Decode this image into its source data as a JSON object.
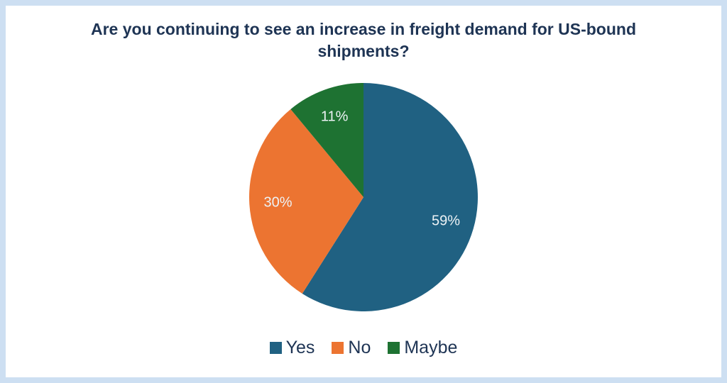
{
  "title": "Are you continuing to see an increase in freight demand for US-bound shipments?",
  "colors": {
    "frame_background": "#CDDFF2",
    "card_background": "#FFFFFF",
    "title_text": "#1E3454",
    "slice_label_text": "#EDF2F5",
    "legend_text": "#1E3454"
  },
  "chart_data": {
    "type": "pie",
    "title": "Are you continuing to see an increase in freight demand for US-bound shipments?",
    "labels": [
      "Yes",
      "No",
      "Maybe"
    ],
    "values": [
      59,
      30,
      11
    ],
    "value_labels": [
      "59%",
      "30%",
      "11%"
    ],
    "colors": [
      "#206182",
      "#EC7431",
      "#1E7232"
    ],
    "start_angle_deg": 0,
    "direction": "clockwise",
    "label_radius_ratio": 0.75,
    "legend_position": "bottom"
  }
}
